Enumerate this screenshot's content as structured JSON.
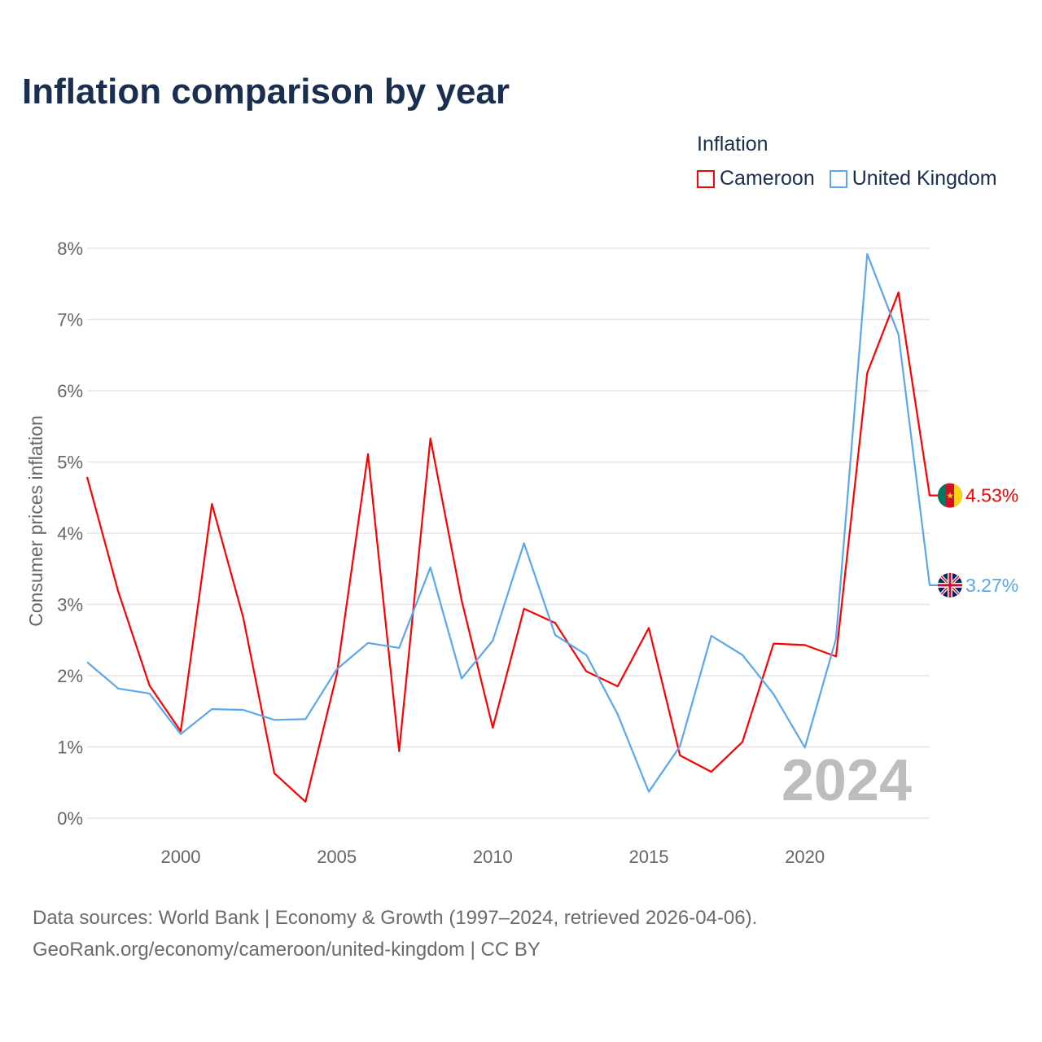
{
  "title": "Inflation comparison by year",
  "legend": {
    "title": "Inflation",
    "items": [
      {
        "label": "Cameroon",
        "color": "#ff0000"
      },
      {
        "label": "United Kingdom",
        "color": "#5aa7ee"
      }
    ]
  },
  "footer": {
    "line1": "Data sources: World Bank | Economy & Growth (1997–2024, retrieved 2026-04-06).",
    "line2": "GeoRank.org/economy/cameroon/united-kingdom | CC BY"
  },
  "chart_data": {
    "type": "line",
    "title": "Inflation comparison by year",
    "ylabel": "Consumer prices inflation",
    "xlabel": "",
    "year_watermark": "2024",
    "x": [
      1997,
      1998,
      1999,
      2000,
      2001,
      2002,
      2003,
      2004,
      2005,
      2006,
      2007,
      2008,
      2009,
      2010,
      2011,
      2012,
      2013,
      2014,
      2015,
      2016,
      2017,
      2018,
      2019,
      2020,
      2021,
      2022,
      2023,
      2024
    ],
    "xlim": [
      1997,
      2024
    ],
    "ylim": [
      0,
      8
    ],
    "xticks": [
      {
        "v": 2000,
        "label": "2000"
      },
      {
        "v": 2005,
        "label": "2005"
      },
      {
        "v": 2010,
        "label": "2010"
      },
      {
        "v": 2015,
        "label": "2015"
      },
      {
        "v": 2020,
        "label": "2020"
      }
    ],
    "yticks": [
      {
        "v": 0,
        "label": "0%"
      },
      {
        "v": 1,
        "label": "1%"
      },
      {
        "v": 2,
        "label": "2%"
      },
      {
        "v": 3,
        "label": "3%"
      },
      {
        "v": 4,
        "label": "4%"
      },
      {
        "v": 5,
        "label": "5%"
      },
      {
        "v": 6,
        "label": "6%"
      },
      {
        "v": 7,
        "label": "7%"
      },
      {
        "v": 8,
        "label": "8%"
      }
    ],
    "grid": true,
    "legend_position": "top-right",
    "series": [
      {
        "name": "Cameroon",
        "color": "#ff0000",
        "end_label": "4.53%",
        "values": [
          4.79,
          3.18,
          1.86,
          1.22,
          4.41,
          2.82,
          0.63,
          0.23,
          2.02,
          5.11,
          0.94,
          5.33,
          3.06,
          1.27,
          2.94,
          2.74,
          2.06,
          1.85,
          2.67,
          0.88,
          0.65,
          1.07,
          2.45,
          2.43,
          2.27,
          6.25,
          7.38,
          4.53
        ]
      },
      {
        "name": "United Kingdom",
        "color": "#5aa7ee",
        "end_label": "3.27%",
        "values": [
          2.19,
          1.82,
          1.75,
          1.18,
          1.53,
          1.52,
          1.38,
          1.39,
          2.09,
          2.46,
          2.39,
          3.52,
          1.96,
          2.49,
          3.86,
          2.57,
          2.29,
          1.46,
          0.37,
          1.01,
          2.56,
          2.29,
          1.74,
          0.99,
          2.52,
          7.92,
          6.79,
          3.27
        ]
      }
    ]
  }
}
